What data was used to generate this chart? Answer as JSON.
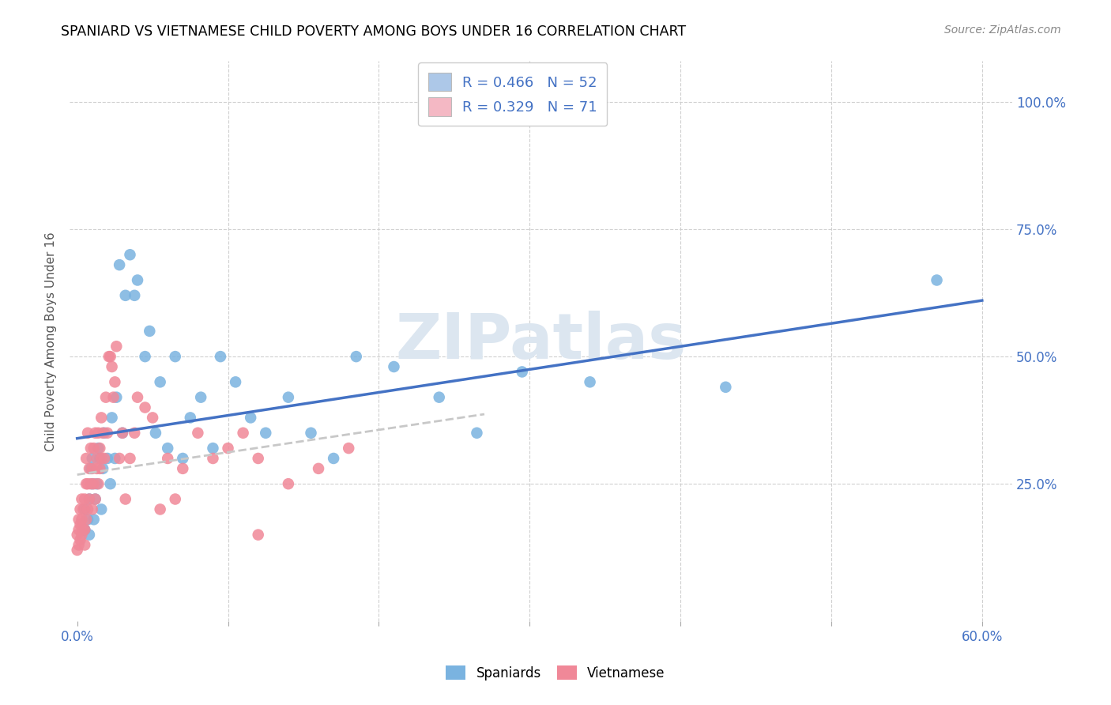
{
  "title": "SPANIARD VS VIETNAMESE CHILD POVERTY AMONG BOYS UNDER 16 CORRELATION CHART",
  "source": "Source: ZipAtlas.com",
  "ylabel": "Child Poverty Among Boys Under 16",
  "xlim": [
    -0.005,
    0.62
  ],
  "ylim": [
    -0.02,
    1.08
  ],
  "xtick_values": [
    0.0,
    0.1,
    0.2,
    0.3,
    0.4,
    0.5,
    0.6
  ],
  "xtick_labels": [
    "0.0%",
    "",
    "",
    "",
    "",
    "",
    "60.0%"
  ],
  "ytick_values": [
    0.25,
    0.5,
    0.75,
    1.0
  ],
  "ytick_labels": [
    "25.0%",
    "50.0%",
    "75.0%",
    "100.0%"
  ],
  "legend_items": [
    {
      "label": "R = 0.466   N = 52",
      "color": "#adc8e8"
    },
    {
      "label": "R = 0.329   N = 71",
      "color": "#f4b8c4"
    }
  ],
  "spaniards_color": "#7ab3e0",
  "vietnamese_color": "#f08898",
  "spaniards_line_color": "#4472c4",
  "vietnamese_line_color": "#c8c8c8",
  "watermark": "ZIPatlas",
  "watermark_color": "#dce6f0",
  "background_color": "#ffffff",
  "grid_color": "#d0d0d0",
  "title_color": "#000000",
  "tick_color": "#4472c4",
  "axis_label_color": "#555555",
  "spaniards_x": [
    0.005,
    0.005,
    0.007,
    0.008,
    0.008,
    0.009,
    0.01,
    0.01,
    0.011,
    0.012,
    0.013,
    0.014,
    0.015,
    0.016,
    0.017,
    0.018,
    0.02,
    0.022,
    0.023,
    0.025,
    0.026,
    0.028,
    0.03,
    0.032,
    0.035,
    0.038,
    0.04,
    0.045,
    0.048,
    0.052,
    0.055,
    0.06,
    0.065,
    0.07,
    0.075,
    0.082,
    0.09,
    0.095,
    0.105,
    0.115,
    0.125,
    0.14,
    0.155,
    0.17,
    0.185,
    0.21,
    0.24,
    0.265,
    0.295,
    0.34,
    0.43,
    0.57
  ],
  "spaniards_y": [
    0.16,
    0.2,
    0.18,
    0.22,
    0.15,
    0.28,
    0.25,
    0.3,
    0.18,
    0.22,
    0.25,
    0.32,
    0.3,
    0.2,
    0.28,
    0.35,
    0.3,
    0.25,
    0.38,
    0.3,
    0.42,
    0.68,
    0.35,
    0.62,
    0.7,
    0.62,
    0.65,
    0.5,
    0.55,
    0.35,
    0.45,
    0.32,
    0.5,
    0.3,
    0.38,
    0.42,
    0.32,
    0.5,
    0.45,
    0.38,
    0.35,
    0.42,
    0.35,
    0.3,
    0.5,
    0.48,
    0.42,
    0.35,
    0.47,
    0.45,
    0.44,
    0.65
  ],
  "vietnamese_x": [
    0.0,
    0.0,
    0.001,
    0.001,
    0.001,
    0.002,
    0.002,
    0.002,
    0.003,
    0.003,
    0.003,
    0.004,
    0.004,
    0.005,
    0.005,
    0.005,
    0.006,
    0.006,
    0.006,
    0.007,
    0.007,
    0.007,
    0.008,
    0.008,
    0.009,
    0.009,
    0.01,
    0.01,
    0.011,
    0.011,
    0.012,
    0.012,
    0.013,
    0.013,
    0.014,
    0.014,
    0.015,
    0.015,
    0.016,
    0.016,
    0.017,
    0.018,
    0.019,
    0.02,
    0.021,
    0.022,
    0.023,
    0.024,
    0.025,
    0.026,
    0.028,
    0.03,
    0.032,
    0.035,
    0.038,
    0.04,
    0.045,
    0.05,
    0.055,
    0.06,
    0.065,
    0.07,
    0.08,
    0.09,
    0.1,
    0.11,
    0.12,
    0.14,
    0.16,
    0.18,
    0.12
  ],
  "vietnamese_y": [
    0.12,
    0.15,
    0.13,
    0.16,
    0.18,
    0.14,
    0.17,
    0.2,
    0.15,
    0.18,
    0.22,
    0.16,
    0.2,
    0.13,
    0.16,
    0.22,
    0.18,
    0.25,
    0.3,
    0.2,
    0.25,
    0.35,
    0.22,
    0.28,
    0.25,
    0.32,
    0.2,
    0.28,
    0.25,
    0.32,
    0.22,
    0.35,
    0.28,
    0.3,
    0.25,
    0.35,
    0.28,
    0.32,
    0.3,
    0.38,
    0.35,
    0.3,
    0.42,
    0.35,
    0.5,
    0.5,
    0.48,
    0.42,
    0.45,
    0.52,
    0.3,
    0.35,
    0.22,
    0.3,
    0.35,
    0.42,
    0.4,
    0.38,
    0.2,
    0.3,
    0.22,
    0.28,
    0.35,
    0.3,
    0.32,
    0.35,
    0.3,
    0.25,
    0.28,
    0.32,
    0.15
  ]
}
